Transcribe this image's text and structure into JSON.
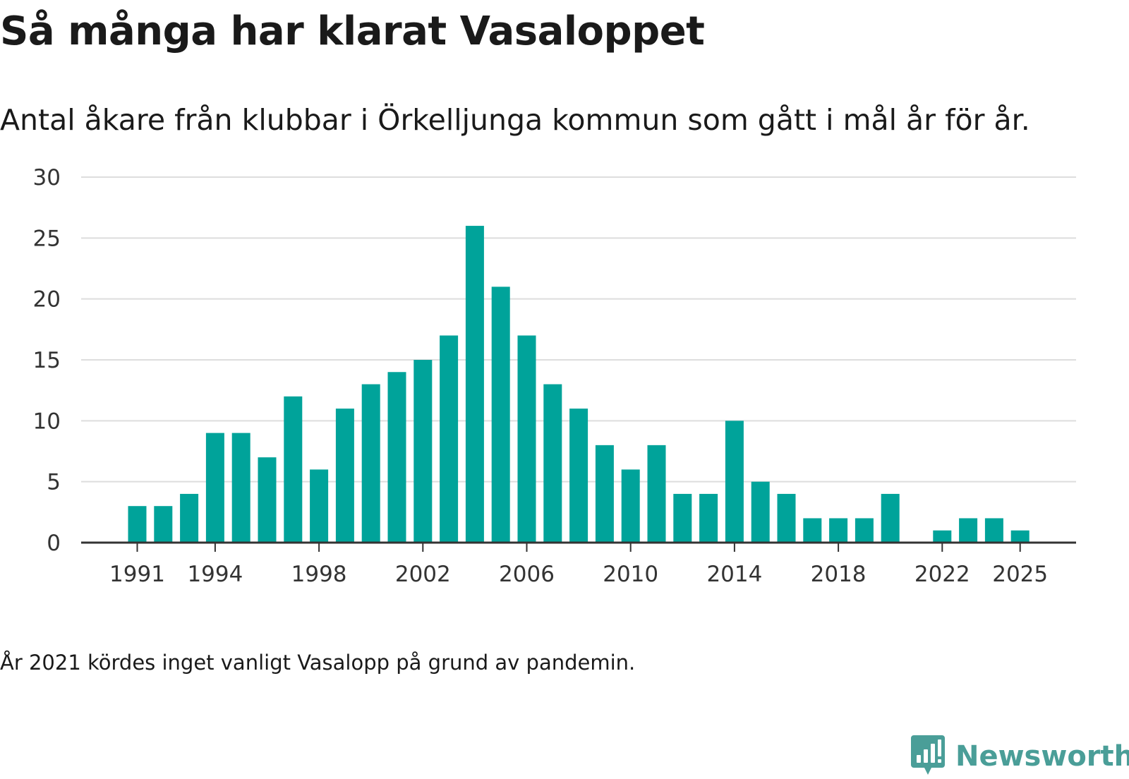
{
  "title": "Så många har klarat Vasaloppet",
  "subtitle": "Antal åkare från klubbar i Örkelljunga kommun som gått i mål år för år.",
  "note": "År 2021 kördes inget vanligt Vasalopp på grund av pandemin.",
  "brand": {
    "name": "Newsworthy",
    "icon": "newsworthy-chart-icon",
    "color": "#4a9e98"
  },
  "colors": {
    "bar": "#00a39a",
    "grid": "#dddddd",
    "axis": "#333333"
  },
  "chart_data": {
    "type": "bar",
    "title": "Så många har klarat Vasaloppet",
    "xlabel": "",
    "ylabel": "",
    "ylim": [
      0,
      30
    ],
    "yticks": [
      0,
      5,
      10,
      15,
      20,
      25,
      30
    ],
    "grid": true,
    "x_tick_labels": [
      1991,
      1994,
      1998,
      2002,
      2006,
      2010,
      2014,
      2018,
      2022,
      2025
    ],
    "categories": [
      1991,
      1992,
      1993,
      1994,
      1995,
      1996,
      1997,
      1998,
      1999,
      2000,
      2001,
      2002,
      2003,
      2004,
      2005,
      2006,
      2007,
      2008,
      2009,
      2010,
      2011,
      2012,
      2013,
      2014,
      2015,
      2016,
      2017,
      2018,
      2019,
      2020,
      2021,
      2022,
      2023,
      2024,
      2025
    ],
    "values": [
      3,
      3,
      4,
      9,
      9,
      7,
      12,
      6,
      11,
      13,
      14,
      15,
      17,
      26,
      21,
      17,
      13,
      11,
      8,
      6,
      8,
      4,
      4,
      10,
      5,
      4,
      2,
      2,
      2,
      4,
      0,
      1,
      2,
      2,
      1
    ]
  }
}
